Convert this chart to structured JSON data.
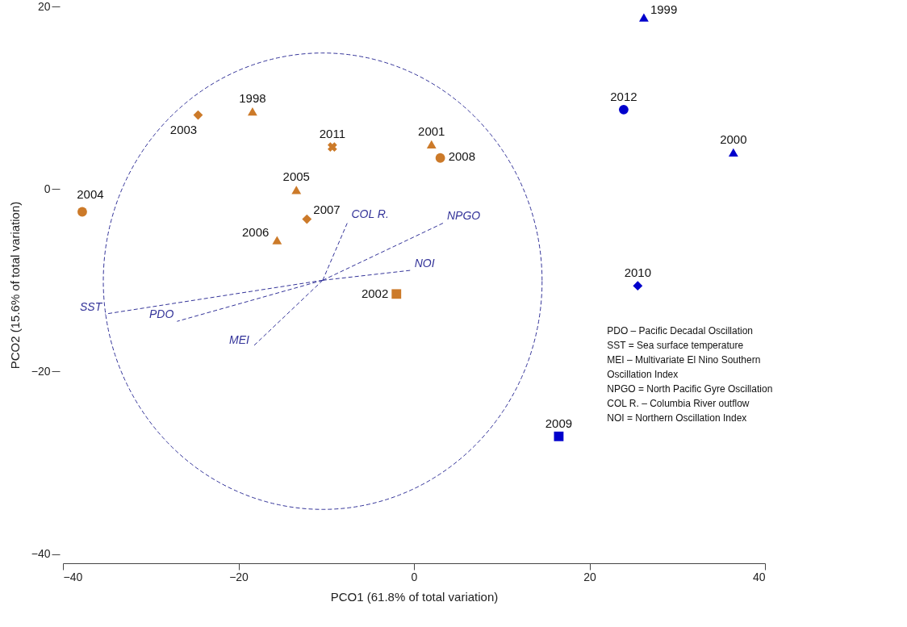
{
  "chart_data": {
    "type": "scatter",
    "xlabel": "PCO1 (61.8% of total variation)",
    "ylabel": "PCO2 (15.6% of total variation)",
    "xlim": [
      -40,
      40
    ],
    "xticks": [
      -40,
      -20,
      0,
      20,
      40
    ],
    "ylim": [
      -41,
      20
    ],
    "yticks": [
      -40,
      -20,
      0,
      20
    ],
    "grid": false,
    "line_style": "dashed",
    "annotations": [
      "PDO – Pacific Decadal Oscillation",
      "SST = Sea surface temperature",
      "MEI – Multivariate El Nino Southern Oscillation Index",
      "NPGO = North Pacific Gyre Oscillation",
      "COL R. – Columbia River outflow",
      "NOI = Northern Oscillation Index"
    ],
    "series": [
      {
        "name": "1999",
        "marker": "triangle",
        "color": "#0000cc",
        "x": [
          26.2
        ],
        "values": [
          18.8
        ]
      },
      {
        "name": "2012",
        "marker": "circle",
        "color": "#0000cc",
        "x": [
          23.9
        ],
        "values": [
          8.7
        ]
      },
      {
        "name": "2000",
        "marker": "triangle",
        "color": "#0000cc",
        "x": [
          36.4
        ],
        "values": [
          4.0
        ]
      },
      {
        "name": "2010",
        "marker": "diamond",
        "color": "#0000cc",
        "x": [
          25.5
        ],
        "values": [
          -10.6
        ]
      },
      {
        "name": "2009",
        "marker": "square",
        "color": "#0000cc",
        "x": [
          16.5
        ],
        "values": [
          -27.1
        ]
      },
      {
        "name": "2003",
        "marker": "diamond",
        "color": "#cc7a29",
        "x": [
          -24.6
        ],
        "values": [
          8.1
        ]
      },
      {
        "name": "1998",
        "marker": "triangle",
        "color": "#cc7a29",
        "x": [
          -18.4
        ],
        "values": [
          8.5
        ]
      },
      {
        "name": "2011",
        "marker": "cross",
        "color": "#cc7a29",
        "x": [
          -9.3
        ],
        "values": [
          4.6
        ]
      },
      {
        "name": "2001",
        "marker": "triangle",
        "color": "#cc7a29",
        "x": [
          2.0
        ],
        "values": [
          4.9
        ]
      },
      {
        "name": "2008",
        "marker": "circle",
        "color": "#cc7a29",
        "x": [
          3.0
        ],
        "values": [
          3.4
        ]
      },
      {
        "name": "2005",
        "marker": "triangle",
        "color": "#cc7a29",
        "x": [
          -13.4
        ],
        "values": [
          -0.1
        ]
      },
      {
        "name": "2007",
        "marker": "diamond",
        "color": "#cc7a29",
        "x": [
          -12.2
        ],
        "values": [
          -3.3
        ]
      },
      {
        "name": "2006",
        "marker": "triangle",
        "color": "#cc7a29",
        "x": [
          -15.6
        ],
        "values": [
          -5.6
        ]
      },
      {
        "name": "2004",
        "marker": "circle",
        "color": "#cc7a29",
        "x": [
          -37.8
        ],
        "values": [
          -2.5
        ]
      },
      {
        "name": "2002",
        "marker": "square",
        "color": "#cc7a29",
        "x": [
          -2.0
        ],
        "values": [
          -11.5
        ]
      },
      {
        "name": "COL R.",
        "type": "line",
        "color": "#333399",
        "x": [
          -10.4,
          -7.5
        ],
        "values": [
          -10.0,
          -3.5
        ]
      },
      {
        "name": "NPGO",
        "type": "line",
        "color": "#333399",
        "x": [
          -10.4,
          3.4
        ],
        "values": [
          -10.0,
          -3.7
        ]
      },
      {
        "name": "NOI",
        "type": "line",
        "color": "#333399",
        "x": [
          -10.4,
          -0.3
        ],
        "values": [
          -10.0,
          -8.9
        ]
      },
      {
        "name": "SST",
        "type": "line",
        "color": "#333399",
        "x": [
          -10.4,
          -35.2
        ],
        "values": [
          -10.0,
          -13.7
        ]
      },
      {
        "name": "PDO",
        "type": "line",
        "color": "#333399",
        "x": [
          -10.4,
          -27.0
        ],
        "values": [
          -10.0,
          -14.5
        ]
      },
      {
        "name": "MEI",
        "type": "line",
        "color": "#333399",
        "x": [
          -10.4,
          -18.4
        ],
        "values": [
          -10.0,
          -17.3
        ]
      }
    ]
  }
}
